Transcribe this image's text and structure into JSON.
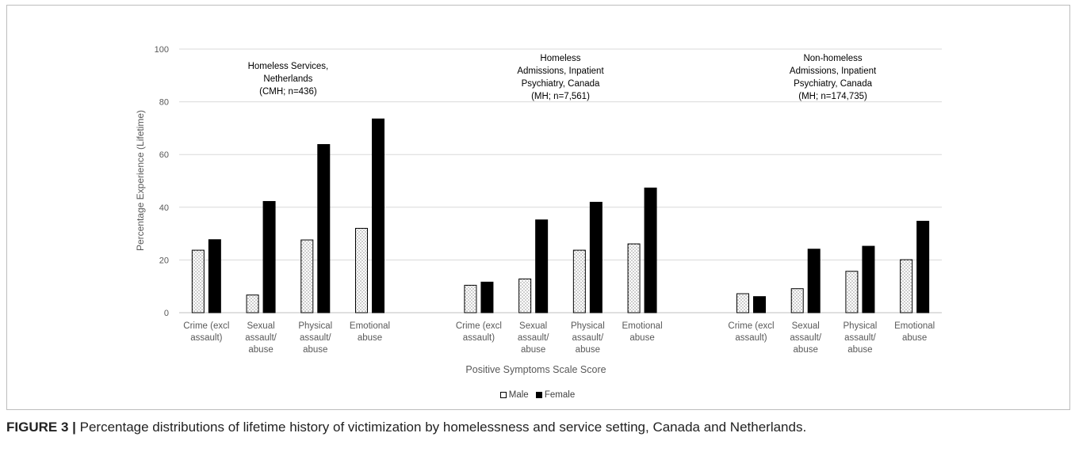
{
  "chart_data": {
    "type": "bar",
    "ylabel": "Percentage Experience (Lifetime)",
    "xlabel": "Positive Symptoms Scale Score",
    "ylim": [
      0,
      100
    ],
    "yticks": [
      0,
      20,
      40,
      60,
      80,
      100
    ],
    "grid": true,
    "legend_position": "bottom-center",
    "series_names": [
      "Male",
      "Female"
    ],
    "series_colors": [
      "#ffffff",
      "#000000"
    ],
    "groups": [
      {
        "title_lines": [
          "Homeless Services,",
          "Netherlands",
          "(CMH; n=436)"
        ],
        "categories": [
          [
            "Crime (excl",
            "assault)"
          ],
          [
            "Sexual",
            "assault/",
            "abuse"
          ],
          [
            "Physical",
            "assault/",
            "abuse"
          ],
          [
            "Emotional",
            "abuse"
          ]
        ],
        "male": [
          23.7,
          6.7,
          27.6,
          32.0
        ],
        "female": [
          27.7,
          42.2,
          63.8,
          73.5
        ]
      },
      {
        "title_lines": [
          "Homeless",
          "Admissions, Inpatient",
          "Psychiatry, Canada",
          "(MH; n=7,561)"
        ],
        "categories": [
          [
            "Crime (excl",
            "assault)"
          ],
          [
            "Sexual",
            "assault/",
            "abuse"
          ],
          [
            "Physical",
            "assault/",
            "abuse"
          ],
          [
            "Emotional",
            "abuse"
          ]
        ],
        "male": [
          10.4,
          12.8,
          23.7,
          26.1
        ],
        "female": [
          11.6,
          35.2,
          41.9,
          47.3
        ]
      },
      {
        "title_lines": [
          "Non-homeless",
          "Admissions, Inpatient",
          "Psychiatry, Canada",
          "(MH; n=174,735)"
        ],
        "categories": [
          [
            "Crime (excl",
            "assault)"
          ],
          [
            "Sexual",
            "assault/",
            "abuse"
          ],
          [
            "Physical",
            "assault/",
            "abuse"
          ],
          [
            "Emotional",
            "abuse"
          ]
        ],
        "male": [
          7.2,
          9.1,
          15.7,
          20.1
        ],
        "female": [
          6.1,
          24.1,
          25.2,
          34.7
        ]
      }
    ]
  },
  "legend": {
    "male": "Male",
    "female": "Female"
  },
  "caption": {
    "label": "FIGURE 3 |",
    "text": " Percentage distributions of lifetime history of victimization by homelessness and service setting, Canada and Netherlands."
  }
}
